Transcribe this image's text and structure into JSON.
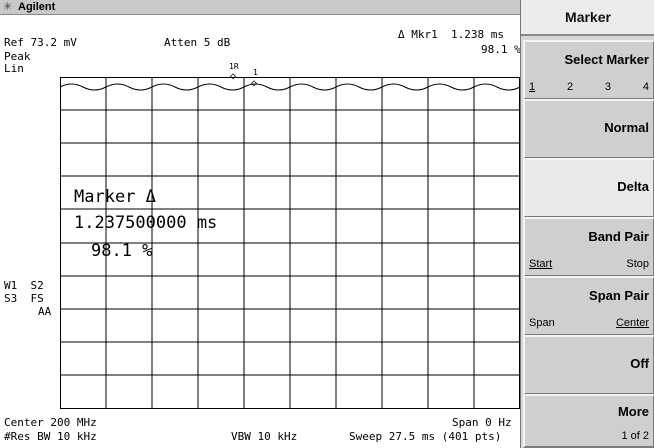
{
  "brand": {
    "name": "Agilent",
    "logo_icon": "agilent-spark-icon"
  },
  "header": {
    "ref_level": "Ref 73.2 mV",
    "attenuation": "Atten 5 dB",
    "delta_marker_readout": "Δ Mkr1  1.238 ms",
    "delta_marker_ratio": "98.1 %",
    "detector": "Peak",
    "scale": "Lin"
  },
  "left_annotations": {
    "line1": "W1  S2",
    "line2": "S3  FS",
    "line3": "AA"
  },
  "marker_block": {
    "title": "Marker Δ",
    "value": "1.237500000 ms",
    "ratio": "98.1 %"
  },
  "trace_markers": {
    "reference_label": "1R",
    "marker_label": "1"
  },
  "footer": {
    "center": "Center 200 MHz",
    "span": "Span 0 Hz",
    "res_bw": "#Res BW 10 kHz",
    "vbw": "VBW 10 kHz",
    "sweep": "Sweep 27.5 ms (401 pts)"
  },
  "softkeys": {
    "title": "Marker",
    "select_marker": {
      "label": "Select Marker",
      "options": [
        "1",
        "2",
        "3",
        "4"
      ],
      "selected": "1"
    },
    "normal": {
      "label": "Normal"
    },
    "delta": {
      "label": "Delta"
    },
    "band_pair": {
      "label": "Band Pair",
      "left": "Start",
      "right": "Stop",
      "selected": "Start"
    },
    "span_pair": {
      "label": "Span Pair",
      "left": "Span",
      "right": "Center",
      "selected": "Center"
    },
    "off": {
      "label": "Off"
    },
    "more": {
      "label": "More",
      "page": "1 of 2"
    }
  },
  "colors": {
    "trace": "#000000",
    "grid": "#000000",
    "softkey_face": "#cfcfcf",
    "header_bar": "#c9c9c9"
  }
}
